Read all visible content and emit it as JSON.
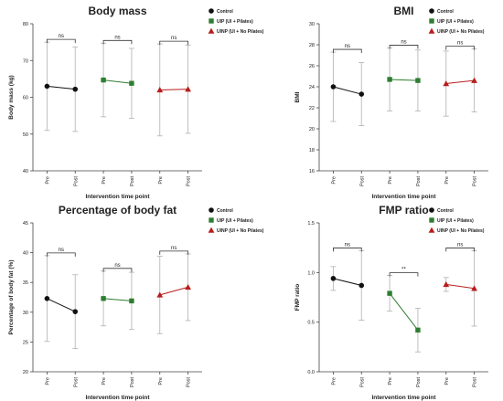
{
  "colors": {
    "control": "#111111",
    "uip": "#2e7d32",
    "uinp": "#b71c1c",
    "errorbar": "#b8b8b8",
    "axis": "#444444"
  },
  "chart_data": [
    {
      "type": "line",
      "title": "Body mass",
      "xlabel": "Intervention time point",
      "ylabel": "Body mass (kg)",
      "ylim": [
        40,
        80
      ],
      "yticks": [
        "40",
        "50",
        "60",
        "70",
        "80"
      ],
      "categories": [
        "Pre",
        "Post",
        "Pre",
        "Post",
        "Pre",
        "Post"
      ],
      "series": [
        {
          "name": "Control",
          "marker": "circle",
          "color": "#111111",
          "x": [
            0,
            1
          ],
          "values": [
            63.0,
            62.2
          ],
          "errors": [
            12.0,
            11.5
          ]
        },
        {
          "name": "UIP (UI + Pilates)",
          "marker": "square",
          "color": "#2e7d32",
          "x": [
            2,
            3
          ],
          "values": [
            64.7,
            63.8
          ],
          "errors": [
            10.0,
            9.5
          ]
        },
        {
          "name": "UINP (UI + No Pilates)",
          "marker": "triangle",
          "color": "#b71c1c",
          "x": [
            4,
            5
          ],
          "values": [
            62.0,
            62.2
          ],
          "errors": [
            12.5,
            12.0
          ]
        }
      ],
      "annotations": [
        {
          "text": "ns",
          "from": 0,
          "to": 1
        },
        {
          "text": "ns",
          "from": 2,
          "to": 3
        },
        {
          "text": "ns",
          "from": 4,
          "to": 5
        }
      ],
      "legend": "top-right"
    },
    {
      "type": "line",
      "title": "BMI",
      "xlabel": "Intervention time point",
      "ylabel": "BMI",
      "ylim": [
        16,
        30
      ],
      "yticks": [
        "16",
        "18",
        "20",
        "22",
        "24",
        "26",
        "28",
        "30"
      ],
      "categories": [
        "Pre",
        "Post",
        "Pre",
        "Post",
        "Pre",
        "Post"
      ],
      "series": [
        {
          "name": "Control",
          "marker": "circle",
          "color": "#111111",
          "x": [
            0,
            1
          ],
          "values": [
            24.0,
            23.3
          ],
          "errors": [
            3.3,
            3.0
          ]
        },
        {
          "name": "UIP (UI + Pilates)",
          "marker": "square",
          "color": "#2e7d32",
          "x": [
            2,
            3
          ],
          "values": [
            24.7,
            24.6
          ],
          "errors": [
            3.0,
            2.9
          ]
        },
        {
          "name": "UINP (UI + No Pilates)",
          "marker": "triangle",
          "color": "#b71c1c",
          "x": [
            4,
            5
          ],
          "values": [
            24.3,
            24.6
          ],
          "errors": [
            3.1,
            3.0
          ]
        }
      ],
      "annotations": [
        {
          "text": "ns",
          "from": 0,
          "to": 1
        },
        {
          "text": "ns",
          "from": 2,
          "to": 3
        },
        {
          "text": "ns",
          "from": 4,
          "to": 5
        }
      ],
      "legend": "top-right"
    },
    {
      "type": "line",
      "title": "Percentage of body fat",
      "xlabel": "Intervention time point",
      "ylabel": "Percentage of body fat (%)",
      "ylim": [
        20,
        45
      ],
      "yticks": [
        "20",
        "25",
        "30",
        "35",
        "40",
        "45"
      ],
      "categories": [
        "Pre",
        "Post",
        "Pre",
        "Post",
        "Pre",
        "Post"
      ],
      "series": [
        {
          "name": "Control",
          "marker": "circle",
          "color": "#111111",
          "x": [
            0,
            1
          ],
          "values": [
            32.3,
            30.1
          ],
          "errors": [
            7.2,
            6.2
          ]
        },
        {
          "name": "UIP (UI + Pilates)",
          "marker": "square",
          "color": "#2e7d32",
          "x": [
            2,
            3
          ],
          "values": [
            32.3,
            31.9
          ],
          "errors": [
            4.6,
            4.8
          ]
        },
        {
          "name": "UINP (UI + No Pilates)",
          "marker": "triangle",
          "color": "#b71c1c",
          "x": [
            4,
            5
          ],
          "values": [
            32.9,
            34.2
          ],
          "errors": [
            6.5,
            5.6
          ]
        }
      ],
      "annotations": [
        {
          "text": "ns",
          "from": 0,
          "to": 1
        },
        {
          "text": "ns",
          "from": 2,
          "to": 3
        },
        {
          "text": "ns",
          "from": 4,
          "to": 5
        }
      ],
      "legend": "top-right"
    },
    {
      "type": "line",
      "title": "FMP ratio",
      "xlabel": "Intervention time point",
      "ylabel": "FMP ratio",
      "ylim": [
        0,
        1.5
      ],
      "yticks": [
        "0.0",
        "0.5",
        "1.0",
        "1.5"
      ],
      "categories": [
        "Pre",
        "Post",
        "Pre",
        "Post",
        "Pre",
        "Post"
      ],
      "series": [
        {
          "name": "Control",
          "marker": "circle",
          "color": "#111111",
          "x": [
            0,
            1
          ],
          "values": [
            0.94,
            0.87
          ],
          "errors": [
            0.12,
            0.35
          ]
        },
        {
          "name": "UIP (UI + Pilates)",
          "marker": "square",
          "color": "#2e7d32",
          "x": [
            2,
            3
          ],
          "values": [
            0.79,
            0.42
          ],
          "errors": [
            0.18,
            0.22
          ]
        },
        {
          "name": "UINP (UI + No Pilates)",
          "marker": "triangle",
          "color": "#b71c1c",
          "x": [
            4,
            5
          ],
          "values": [
            0.88,
            0.84
          ],
          "errors": [
            0.07,
            0.38
          ]
        }
      ],
      "annotations": [
        {
          "text": "ns",
          "from": 0,
          "to": 1
        },
        {
          "text": "**",
          "from": 2,
          "to": 3
        },
        {
          "text": "ns",
          "from": 4,
          "to": 5
        }
      ],
      "legend": "top-right"
    }
  ]
}
